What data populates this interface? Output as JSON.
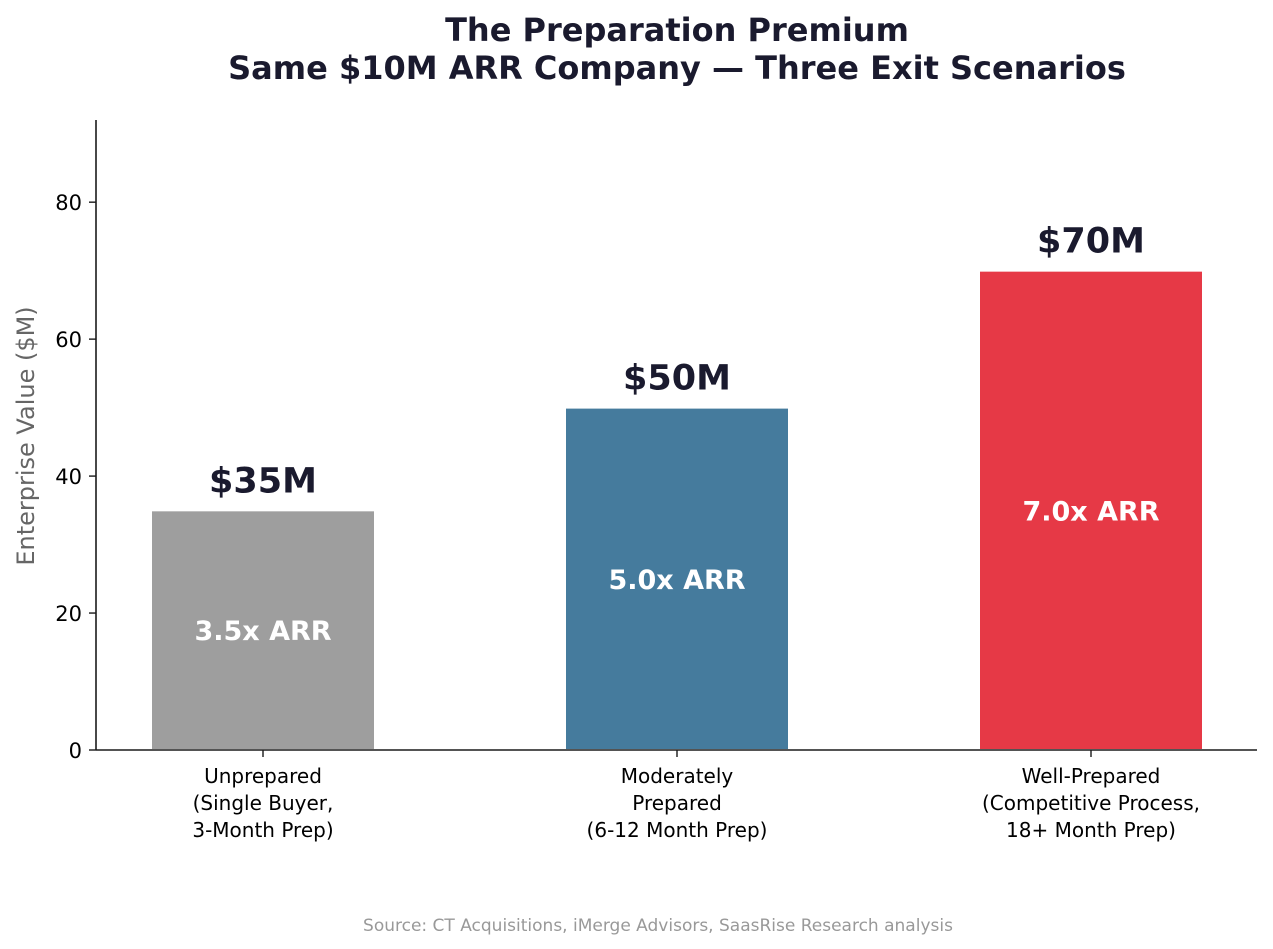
{
  "chart_data": {
    "type": "bar",
    "title": [
      "The Preparation Premium",
      "Same $10M ARR Company — Three Exit Scenarios"
    ],
    "ylabel": "Enterprise Value ($M)",
    "xlabel": "",
    "ylim": [
      0,
      92
    ],
    "yticks": [
      0,
      20,
      40,
      60,
      80
    ],
    "categories": [
      [
        "Unprepared",
        "(Single Buyer,",
        "3-Month Prep)"
      ],
      [
        "Moderately",
        "Prepared",
        "(6-12 Month Prep)"
      ],
      [
        "Well-Prepared",
        "(Competitive Process,",
        "18+ Month Prep)"
      ]
    ],
    "values": [
      35,
      50,
      70
    ],
    "value_labels": [
      "$35M",
      "$50M",
      "$70M"
    ],
    "inner_labels": [
      "3.5x ARR",
      "5.0x ARR",
      "7.0x ARR"
    ],
    "colors": [
      "#9e9e9e",
      "#457b9d",
      "#e63946"
    ],
    "grid": false,
    "source": "Source: CT Acquisitions, iMerge Advisors, SaasRise Research analysis"
  }
}
